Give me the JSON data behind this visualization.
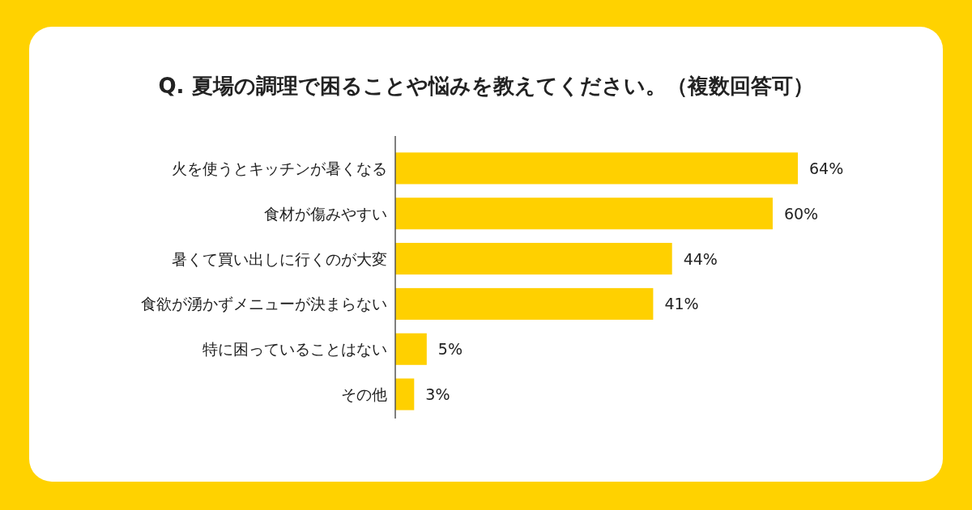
{
  "chart_data": {
    "type": "bar",
    "orientation": "horizontal",
    "title": "Q. 夏場の調理で困ることや悩みを教えてください。（複数回答可）",
    "categories": [
      "火を使うとキッチンが暑くなる",
      "食材が傷みやすい",
      "暑くて買い出しに行くのが大変",
      "食欲が湧かずメニューが決まらない",
      "特に困っていることはない",
      "その他"
    ],
    "values": [
      64,
      60,
      44,
      41,
      5,
      3
    ],
    "color": "#ffd000",
    "value_labels": [
      "64%",
      "60%",
      "44%",
      "41%",
      "5%",
      "3%"
    ]
  }
}
